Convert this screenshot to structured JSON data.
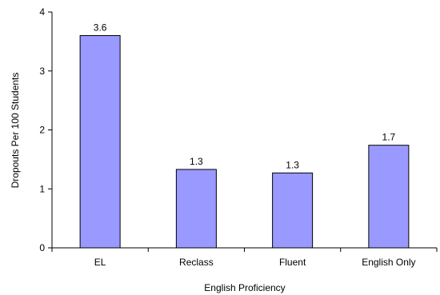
{
  "colors": {
    "bar_fill": "#9999ff",
    "bar_stroke": "#000000",
    "axis": "#000000"
  },
  "chart_data": {
    "type": "bar",
    "title": "",
    "xlabel": "English Proficiency",
    "ylabel": "Dropouts Per 100 Students",
    "categories": [
      "EL",
      "Reclass",
      "Fluent",
      "English Only"
    ],
    "values": [
      3.6,
      1.33,
      1.27,
      1.74
    ],
    "data_labels": [
      "3.6",
      "1.3",
      "1.3",
      "1.7"
    ],
    "ylim": [
      0,
      4
    ],
    "yticks": [
      "0",
      "1",
      "2",
      "3",
      "4"
    ],
    "grid": false,
    "legend": "none"
  }
}
